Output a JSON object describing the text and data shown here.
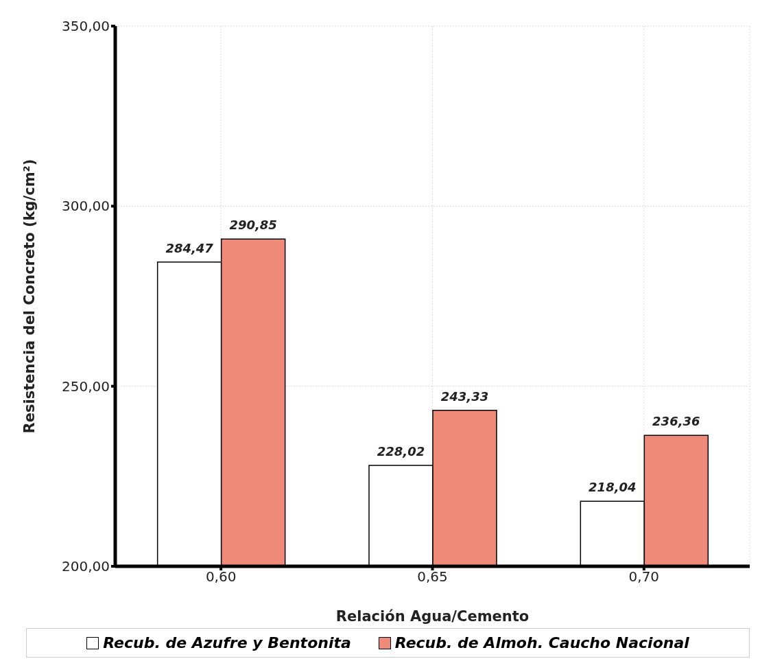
{
  "chart_data": {
    "type": "bar",
    "xlabel": "Relación Agua/Cemento",
    "ylabel": "Resistencia del Concreto (kg/cm²)",
    "categories": [
      "0,60",
      "0,65",
      "0,70"
    ],
    "series": [
      {
        "name": "Recub. de Azufre y Bentonita",
        "color": "#ffffff",
        "values": [
          284.47,
          228.02,
          218.04
        ],
        "value_labels": [
          "284,47",
          "228,02",
          "218,04"
        ]
      },
      {
        "name": "Recub. de Almoh. Caucho Nacional",
        "color": "#f08a78",
        "values": [
          290.85,
          243.33,
          236.36
        ],
        "value_labels": [
          "290,85",
          "243,33",
          "236,36"
        ]
      }
    ],
    "ylim": [
      200,
      350
    ],
    "yticks": [
      {
        "value": 200,
        "label": "200,00"
      },
      {
        "value": 250,
        "label": "250,00"
      },
      {
        "value": 300,
        "label": "300,00"
      },
      {
        "value": 350,
        "label": "350,00"
      }
    ],
    "grid": true,
    "legend": "bottom"
  }
}
